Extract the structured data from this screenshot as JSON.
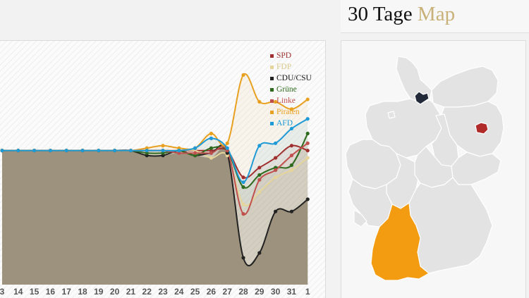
{
  "map_header": {
    "title_part1": "30 Tage",
    "title_part2": "Map"
  },
  "colors": {
    "accent": "#c8b27a",
    "highlight_orange": "#f39c12",
    "hamburg": "#222a3a",
    "berlin": "#b02a2a",
    "state_fill": "#e3e3e3"
  },
  "map": {
    "highlighted_states": [
      "Baden-Württemberg",
      "Hamburg",
      "Berlin"
    ]
  },
  "chart_data": {
    "type": "line",
    "x": [
      "3",
      "14",
      "15",
      "16",
      "17",
      "18",
      "19",
      "20",
      "21",
      "22",
      "23",
      "24",
      "25",
      "26",
      "27",
      "28",
      "29",
      "30",
      "31",
      "1"
    ],
    "ylim": [
      0,
      100
    ],
    "legend_placement": "top-right",
    "series": [
      {
        "name": "SPD",
        "color": "#a03030",
        "values": [
          55,
          55,
          55,
          55,
          55,
          55,
          55,
          55,
          55,
          55,
          55,
          55,
          55,
          55,
          55,
          44,
          48,
          52,
          57,
          55
        ]
      },
      {
        "name": "FDP",
        "color": "#e5d59a",
        "values": [
          55,
          55,
          55,
          55,
          55,
          55,
          55,
          55,
          55,
          55,
          55,
          55,
          55,
          52,
          53,
          33,
          38,
          44,
          47,
          52
        ]
      },
      {
        "name": "CDU/CSU",
        "color": "#222222",
        "values": [
          55,
          55,
          55,
          55,
          55,
          55,
          55,
          55,
          55,
          53,
          53,
          55,
          53,
          54,
          54,
          11,
          13,
          30,
          30,
          35
        ]
      },
      {
        "name": "Grüne",
        "color": "#2e6b1e",
        "values": [
          55,
          55,
          55,
          55,
          55,
          55,
          55,
          55,
          55,
          54,
          54,
          55,
          53,
          56,
          55,
          40,
          45,
          48,
          49,
          62
        ]
      },
      {
        "name": "Linke",
        "color": "#c0504d",
        "values": [
          55,
          55,
          55,
          55,
          55,
          55,
          55,
          55,
          55,
          55,
          55,
          54,
          54,
          54,
          55,
          29,
          43,
          47,
          53,
          58
        ]
      },
      {
        "name": "Piraten",
        "color": "#e8a020",
        "values": [
          55,
          55,
          55,
          55,
          55,
          55,
          55,
          55,
          55,
          56,
          57,
          56,
          56,
          62,
          58,
          86,
          75,
          75,
          72,
          76
        ]
      },
      {
        "name": "AFD",
        "color": "#1e9ad6",
        "values": [
          55,
          55,
          55,
          55,
          55,
          55,
          55,
          55,
          55,
          55,
          55,
          55,
          56,
          60,
          56,
          42,
          57,
          58,
          64,
          68
        ]
      }
    ]
  }
}
